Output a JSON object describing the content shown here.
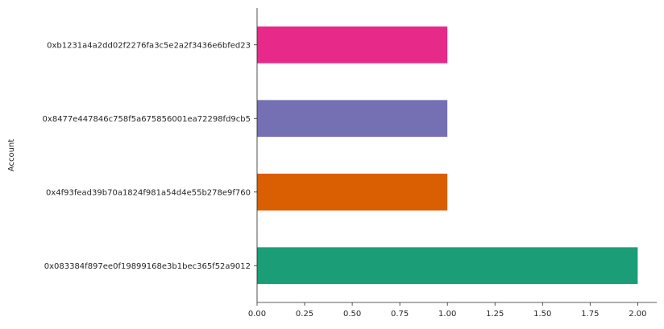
{
  "chart_data": {
    "type": "bar",
    "orientation": "horizontal",
    "ylabel": "Account",
    "xlabel": "",
    "categories": [
      "0x083384f897ee0f19899168e3b1bec365f52a9012",
      "0x4f93fead39b70a1824f981a54d4e55b278e9f760",
      "0x8477e447846c758f5a675856001ea72298fd9cb5",
      "0xb1231a4a2dd02f2276fa3c5e2a2f3436e6bfed23"
    ],
    "values": [
      2,
      1,
      1,
      1
    ],
    "colors": [
      "#1b9e77",
      "#d95f02",
      "#7570b3",
      "#e7298a"
    ],
    "xlim": [
      0,
      2.1
    ],
    "xticks": [
      "0.00",
      "0.25",
      "0.50",
      "0.75",
      "1.00",
      "1.25",
      "1.50",
      "1.75",
      "2.00"
    ],
    "grid": false,
    "legend": "none"
  }
}
